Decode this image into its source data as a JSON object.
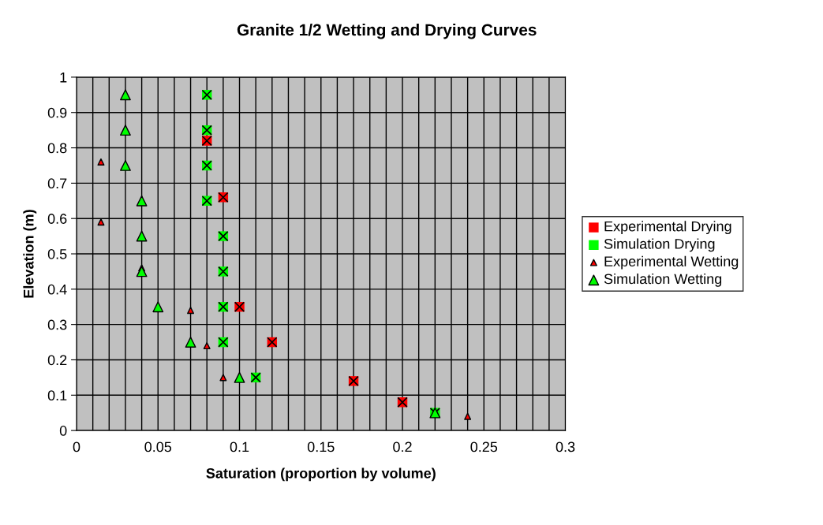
{
  "chart_data": {
    "type": "scatter",
    "title": "Granite 1/2 Wetting and Drying Curves",
    "xlabel": "Saturation (proportion by volume)",
    "ylabel": "Elevation (m)",
    "xlim": [
      0,
      0.3
    ],
    "ylim": [
      0,
      1
    ],
    "xticks": [
      0,
      {
        "value": 0.01,
        "label": null
      },
      {
        "value": 0.02,
        "label": null
      },
      {
        "value": 0.03,
        "label": null
      },
      {
        "value": 0.04,
        "label": null
      },
      0.05,
      {
        "value": 0.06,
        "label": null
      },
      {
        "value": 0.07,
        "label": null
      },
      {
        "value": 0.08,
        "label": null
      },
      {
        "value": 0.09,
        "label": null
      },
      0.1,
      {
        "value": 0.11,
        "label": null
      },
      {
        "value": 0.12,
        "label": null
      },
      {
        "value": 0.13,
        "label": null
      },
      {
        "value": 0.14,
        "label": null
      },
      0.15,
      {
        "value": 0.16,
        "label": null
      },
      {
        "value": 0.17,
        "label": null
      },
      {
        "value": 0.18,
        "label": null
      },
      {
        "value": 0.19,
        "label": null
      },
      0.2,
      {
        "value": 0.21,
        "label": null
      },
      {
        "value": 0.22,
        "label": null
      },
      {
        "value": 0.23,
        "label": null
      },
      {
        "value": 0.24,
        "label": null
      },
      0.25,
      {
        "value": 0.26,
        "label": null
      },
      {
        "value": 0.27,
        "label": null
      },
      {
        "value": 0.28,
        "label": null
      },
      {
        "value": 0.29,
        "label": null
      },
      0.3
    ],
    "yticks": [
      0,
      0.1,
      0.2,
      0.3,
      0.4,
      0.5,
      0.6,
      0.7,
      0.8,
      0.9,
      1
    ],
    "grid": true,
    "legend": "right",
    "series": [
      {
        "name": "Experimental Drying",
        "color": "#ff0000",
        "marker": "square",
        "x": [
          0.08,
          0.09,
          0.1,
          0.12,
          0.17,
          0.2
        ],
        "values": [
          0.82,
          0.66,
          0.35,
          0.25,
          0.14,
          0.08
        ]
      },
      {
        "name": "Simulation Drying",
        "color": "#00ff00",
        "marker": "square",
        "x": [
          0.08,
          0.08,
          0.08,
          0.08,
          0.09,
          0.09,
          0.09,
          0.09,
          0.11,
          0.22
        ],
        "values": [
          0.95,
          0.85,
          0.75,
          0.65,
          0.55,
          0.45,
          0.35,
          0.25,
          0.15,
          0.05
        ]
      },
      {
        "name": "Experimental Wetting",
        "color": "#ff0000",
        "marker": "triangle",
        "x": [
          0.015,
          0.015,
          0.04,
          0.07,
          0.08,
          0.09,
          0.24
        ],
        "values": [
          0.76,
          0.59,
          0.46,
          0.34,
          0.24,
          0.15,
          0.04
        ]
      },
      {
        "name": "Simulation Wetting",
        "color": "#00ff00",
        "marker": "triangle",
        "x": [
          0.03,
          0.03,
          0.03,
          0.04,
          0.04,
          0.04,
          0.05,
          0.07,
          0.1,
          0.22
        ],
        "values": [
          0.95,
          0.85,
          0.75,
          0.65,
          0.55,
          0.45,
          0.35,
          0.25,
          0.15,
          0.05
        ]
      }
    ]
  }
}
